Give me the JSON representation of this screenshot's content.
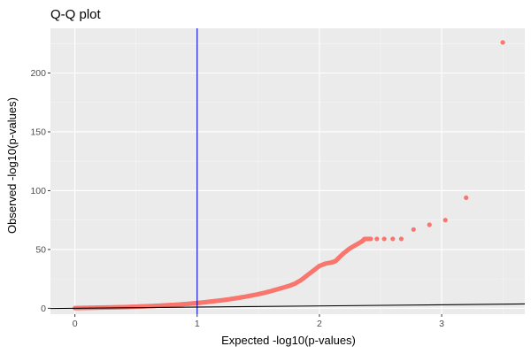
{
  "chart_data": {
    "type": "scatter",
    "title": "Q-Q plot",
    "xlabel": "Expected -log10(p-values)",
    "ylabel": "Observed -log10(p-values)",
    "xlim": [
      -0.2,
      3.68
    ],
    "ylim": [
      -5,
      238
    ],
    "x_ticks": [
      0,
      1,
      2,
      3
    ],
    "y_ticks": [
      0,
      50,
      100,
      150,
      200
    ],
    "grid": true,
    "legend": "none",
    "colors": {
      "panel": "#ebebeb",
      "grid_major": "#ffffff",
      "points": "#f8766d",
      "vline": "#0000cc",
      "reference_line": "#000000"
    },
    "vline": {
      "x": 1
    },
    "reference_line": {
      "slope": 1,
      "intercept": 0
    },
    "series": [
      {
        "points": [
          [
            0.0,
            0.2
          ],
          [
            0.05,
            0.3
          ],
          [
            0.1,
            0.4
          ],
          [
            0.15,
            0.5
          ],
          [
            0.2,
            0.6
          ],
          [
            0.25,
            0.7
          ],
          [
            0.3,
            0.8
          ],
          [
            0.35,
            0.9
          ],
          [
            0.4,
            1.0
          ],
          [
            0.45,
            1.2
          ],
          [
            0.5,
            1.4
          ],
          [
            0.55,
            1.6
          ],
          [
            0.6,
            1.8
          ],
          [
            0.65,
            2.0
          ],
          [
            0.7,
            2.3
          ],
          [
            0.75,
            2.6
          ],
          [
            0.8,
            2.9
          ],
          [
            0.85,
            3.2
          ],
          [
            0.9,
            3.6
          ],
          [
            0.95,
            4.0
          ],
          [
            1.0,
            4.5
          ],
          [
            1.05,
            5.0
          ],
          [
            1.1,
            5.6
          ],
          [
            1.15,
            6.2
          ],
          [
            1.2,
            6.8
          ],
          [
            1.25,
            7.5
          ],
          [
            1.3,
            8.3
          ],
          [
            1.35,
            9.1
          ],
          [
            1.4,
            10.0
          ],
          [
            1.45,
            11.0
          ],
          [
            1.5,
            12.0
          ],
          [
            1.55,
            13.2
          ],
          [
            1.6,
            14.5
          ],
          [
            1.65,
            16.0
          ],
          [
            1.7,
            17.5
          ],
          [
            1.75,
            19.0
          ],
          [
            1.8,
            21.0
          ],
          [
            1.85,
            24.0
          ],
          [
            1.9,
            28.0
          ],
          [
            1.95,
            32.0
          ],
          [
            2.0,
            36.0
          ],
          [
            2.05,
            38.0
          ],
          [
            2.1,
            39.0
          ],
          [
            2.13,
            40.0
          ],
          [
            2.16,
            43.0
          ],
          [
            2.2,
            47.0
          ],
          [
            2.25,
            51.0
          ],
          [
            2.3,
            54.0
          ],
          [
            2.35,
            57.0
          ],
          [
            2.37,
            59.0
          ],
          [
            2.42,
            59.0
          ],
          [
            2.47,
            59.0
          ],
          [
            2.53,
            59.0
          ],
          [
            2.6,
            59.0
          ],
          [
            2.67,
            59.0
          ],
          [
            2.77,
            67.0
          ],
          [
            2.9,
            71.0
          ],
          [
            3.03,
            75.0
          ],
          [
            3.2,
            94.0
          ],
          [
            3.5,
            226.0
          ]
        ]
      }
    ]
  }
}
